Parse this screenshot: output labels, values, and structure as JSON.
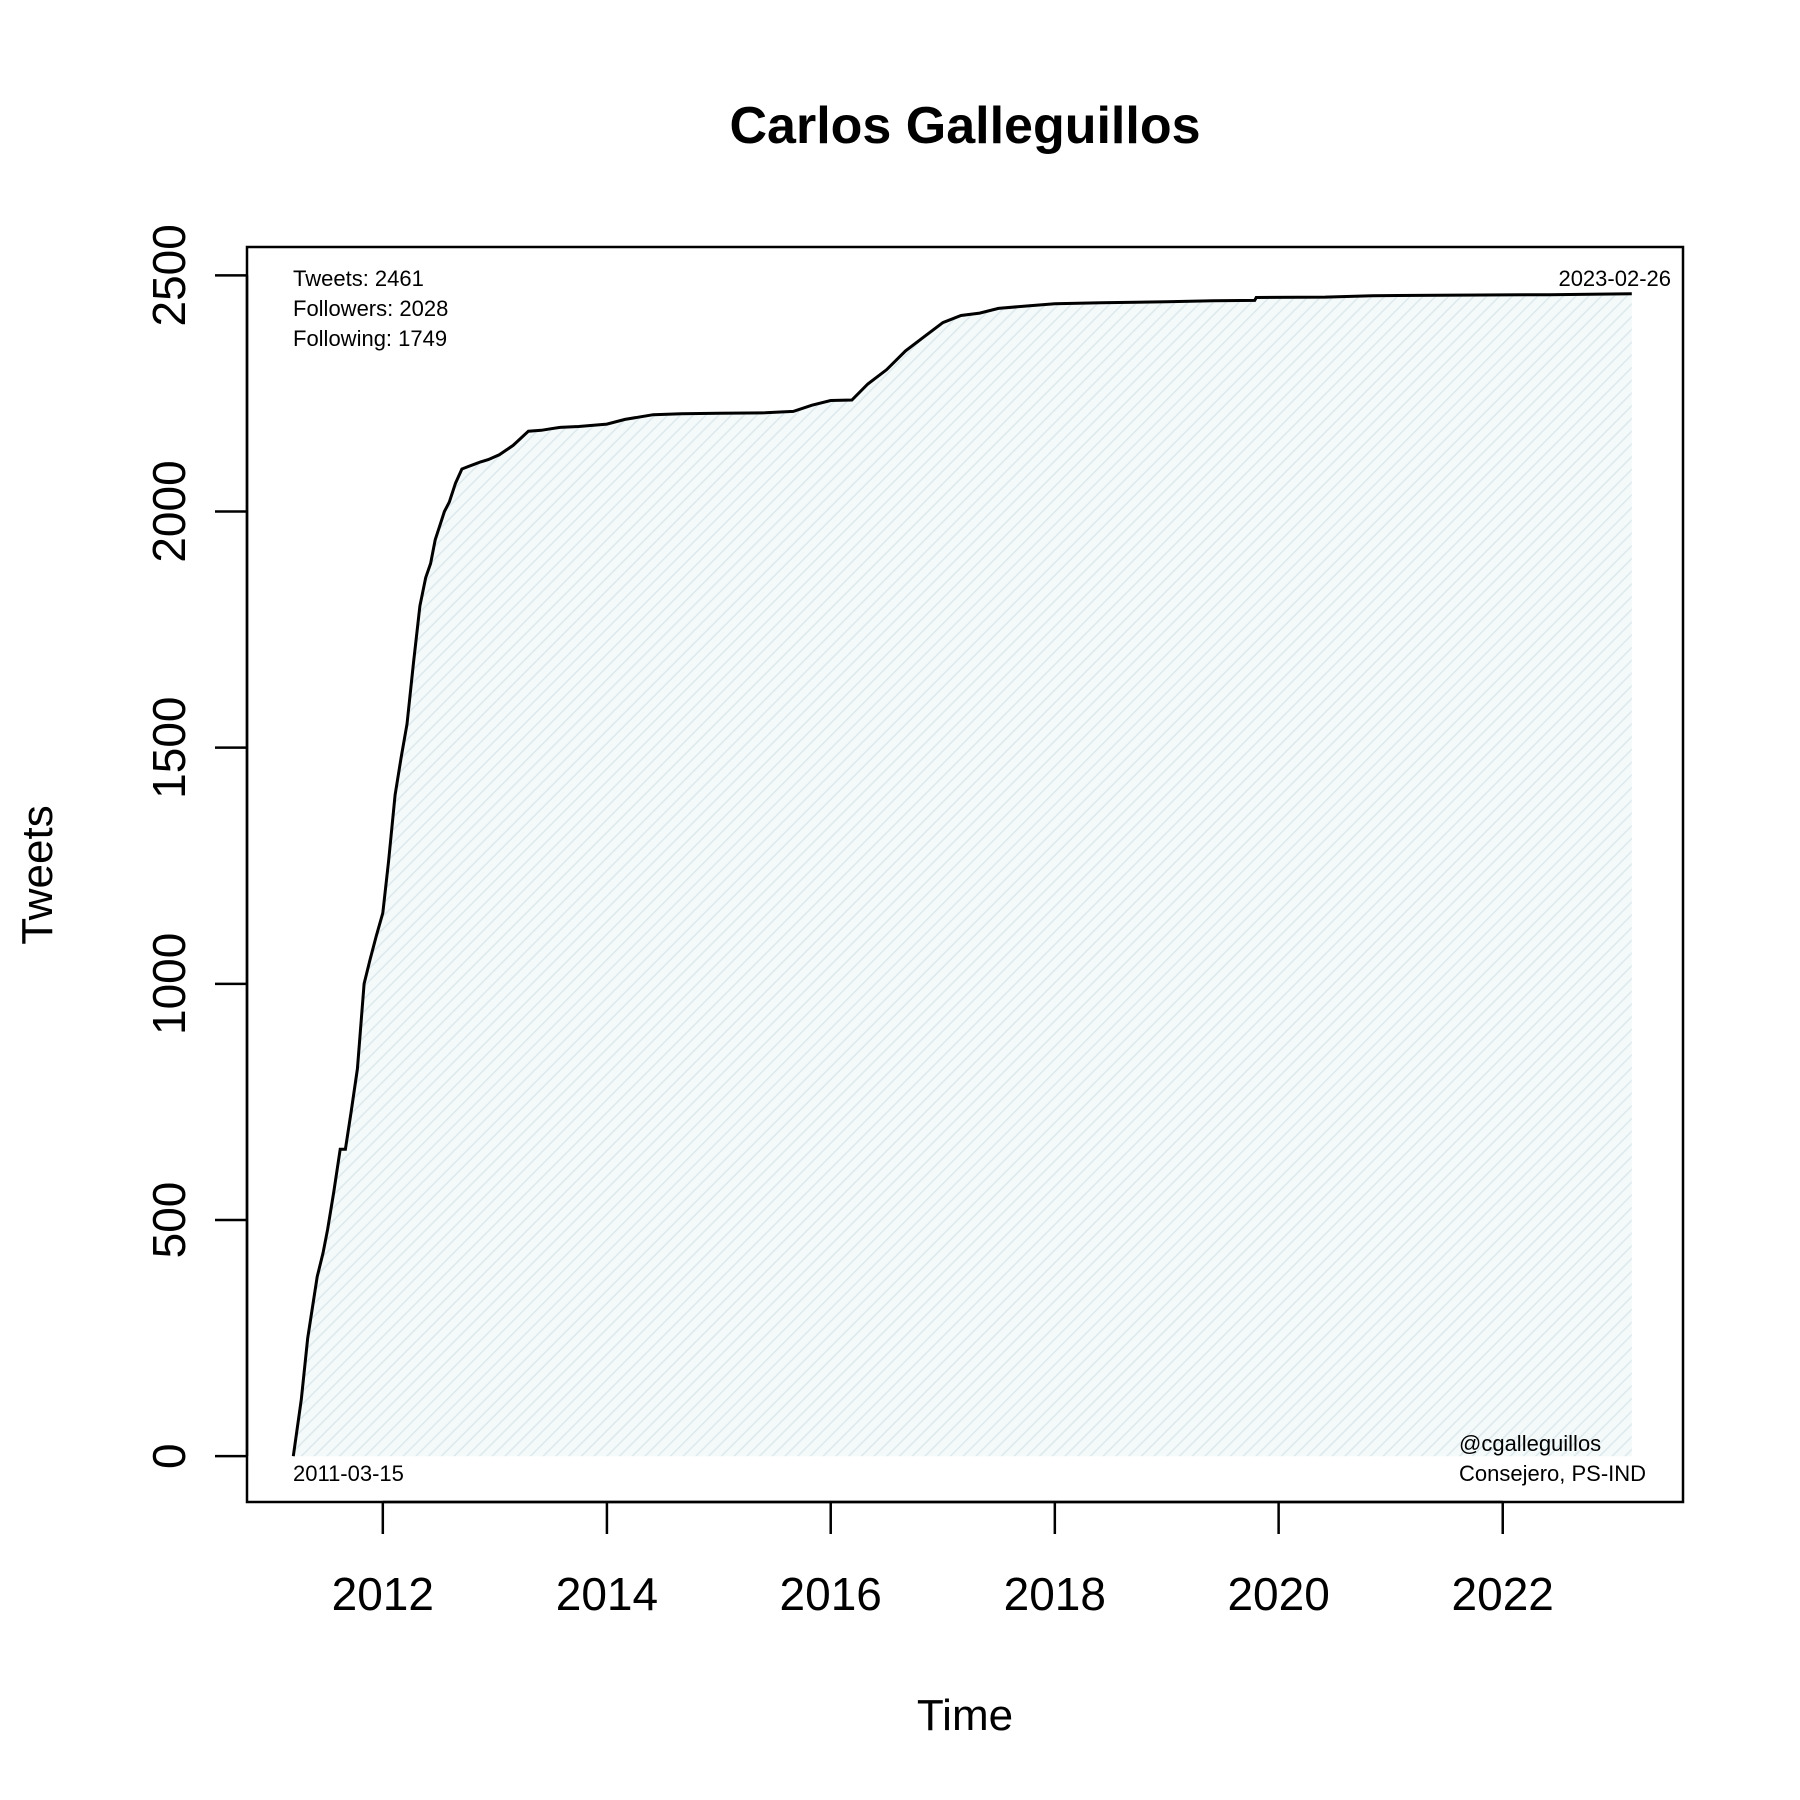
{
  "chart_data": {
    "type": "area",
    "title": "Carlos Galleguillos",
    "xlabel": "Time",
    "ylabel": "Tweets",
    "xlim": [
      "2010-10-15",
      "2023-08-12"
    ],
    "ylim": [
      -97,
      2560
    ],
    "x_ticks": [
      "2012-01-01",
      "2014-01-01",
      "2016-01-01",
      "2018-01-01",
      "2020-01-01",
      "2022-01-01"
    ],
    "x_tick_labels": [
      "2012",
      "2014",
      "2016",
      "2018",
      "2020",
      "2022"
    ],
    "y_ticks": [
      0,
      500,
      1000,
      1500,
      2000,
      2500
    ],
    "y_tick_labels": [
      "0",
      "500",
      "1000",
      "1500",
      "2000",
      "2500"
    ],
    "grid": false,
    "fill_color": "#e9f2f4",
    "line_color": "#000000",
    "series": [
      {
        "x": [
          "2011-03-15",
          "2011-04-10",
          "2011-05-01",
          "2011-06-01",
          "2011-06-20",
          "2011-07-05",
          "2011-07-25",
          "2011-08-15",
          "2011-09-01",
          "2011-09-20",
          "2011-10-10",
          "2011-11-01",
          "2011-11-20",
          "2011-12-10",
          "2012-01-01",
          "2012-01-20",
          "2012-02-10",
          "2012-03-01",
          "2012-03-20",
          "2012-04-10",
          "2012-05-01",
          "2012-05-20",
          "2012-06-05",
          "2012-06-20",
          "2012-07-05",
          "2012-07-20",
          "2012-08-05",
          "2012-08-25",
          "2012-09-15",
          "2012-10-05",
          "2012-10-25",
          "2012-11-15",
          "2012-12-10",
          "2013-01-15",
          "2013-03-01",
          "2013-04-20",
          "2013-06-01",
          "2013-07-01",
          "2013-08-01",
          "2013-10-01",
          "2014-01-01",
          "2014-03-01",
          "2014-06-01",
          "2014-09-01",
          "2015-01-01",
          "2015-06-01",
          "2015-09-01",
          "2015-11-01",
          "2016-01-01",
          "2016-03-10",
          "2016-05-01",
          "2016-07-01",
          "2016-09-01",
          "2016-11-01",
          "2017-01-01",
          "2017-03-01",
          "2017-05-01",
          "2017-07-01",
          "2017-10-01",
          "2018-01-01",
          "2018-06-01",
          "2019-01-01",
          "2019-06-01",
          "2019-10-15",
          "2019-10-20",
          "2020-06-01",
          "2020-11-01",
          "2021-06-01",
          "2022-06-01",
          "2023-02-26"
        ],
        "values": [
          0,
          120,
          250,
          380,
          430,
          480,
          560,
          650,
          650,
          730,
          820,
          1000,
          1050,
          1100,
          1150,
          1260,
          1400,
          1480,
          1550,
          1680,
          1800,
          1860,
          1890,
          1940,
          1970,
          2000,
          2020,
          2060,
          2090,
          2095,
          2100,
          2105,
          2110,
          2120,
          2140,
          2170,
          2172,
          2175,
          2178,
          2180,
          2185,
          2195,
          2205,
          2207,
          2208,
          2209,
          2212,
          2225,
          2235,
          2236,
          2270,
          2300,
          2340,
          2370,
          2400,
          2415,
          2420,
          2430,
          2435,
          2440,
          2442,
          2444,
          2446,
          2447,
          2453,
          2454,
          2457,
          2458,
          2459,
          2461
        ]
      }
    ],
    "annotations": {
      "stats": [
        "Tweets: 2461",
        "Followers: 2028",
        "Following: 1749"
      ],
      "end_date": "2023-02-26",
      "start_date": "2011-03-15",
      "handle": "@cgalleguillos",
      "role": "Consejero, PS-IND"
    }
  }
}
